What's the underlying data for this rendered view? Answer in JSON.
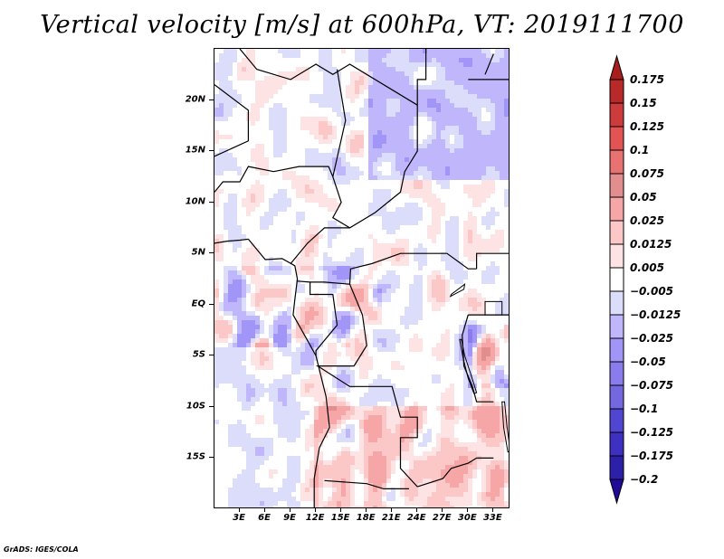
{
  "title": "Vertical velocity [m/s] at 600hPa, VT: 2019111700",
  "credit": "GrADS: IGES/COLA",
  "chart_data": {
    "type": "heatmap",
    "title": "Vertical velocity [m/s] at 600hPa, VT: 2019111700",
    "variable": "Vertical velocity",
    "units": "m/s",
    "level": "600hPa",
    "valid_time": "2019111700",
    "xlabel": "",
    "ylabel": "",
    "lon_ticks": [
      "3E",
      "6E",
      "9E",
      "12E",
      "15E",
      "18E",
      "21E",
      "24E",
      "27E",
      "30E",
      "33E"
    ],
    "lon_tick_values": [
      3,
      6,
      9,
      12,
      15,
      18,
      21,
      24,
      27,
      30,
      33
    ],
    "lat_ticks": [
      "20N",
      "15N",
      "10N",
      "5N",
      "EQ",
      "5S",
      "10S",
      "15S"
    ],
    "lat_tick_values": [
      20,
      15,
      10,
      5,
      0,
      -5,
      -10,
      -15
    ],
    "xlim": [
      0,
      35
    ],
    "ylim": [
      -20,
      25
    ],
    "colorbar": {
      "orientation": "vertical",
      "placement": "right",
      "extend": "both",
      "labels": [
        "0.175",
        "0.15",
        "0.125",
        "0.1",
        "0.075",
        "0.05",
        "0.025",
        "0.0125",
        "0.005",
        "-0.005",
        "-0.0125",
        "-0.025",
        "-0.05",
        "-0.075",
        "-0.1",
        "-0.125",
        "-0.175",
        "-0.2"
      ],
      "levels": [
        0.175,
        0.15,
        0.125,
        0.1,
        0.075,
        0.05,
        0.025,
        0.0125,
        0.005,
        -0.005,
        -0.0125,
        -0.025,
        -0.05,
        -0.075,
        -0.1,
        -0.125,
        -0.175,
        -0.2
      ],
      "colors": [
        "#a81e1e",
        "#b82a2a",
        "#cc3c3c",
        "#e25454",
        "#e87272",
        "#e38e8e",
        "#f6a6a6",
        "#fbc7c7",
        "#fde3e3",
        "#ffffff",
        "#dcdcfb",
        "#c0b6fb",
        "#a196f7",
        "#8a7ced",
        "#7468e0",
        "#5146d2",
        "#3e30c0",
        "#2d20a8",
        "#200a98"
      ]
    },
    "field_description": "Mixed positive (red) and negative (blue) vertical velocity over Central Africa; strongest alternating cells along equatorial Atlantic (0-3S), Congo basin and eastern Africa near 5-15S; mostly weak (|w|<0.05) elsewhere",
    "overlays": [
      "coastlines",
      "country borders",
      "lakes"
    ]
  }
}
